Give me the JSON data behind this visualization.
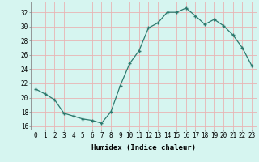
{
  "x": [
    0,
    1,
    2,
    3,
    4,
    5,
    6,
    7,
    8,
    9,
    10,
    11,
    12,
    13,
    14,
    15,
    16,
    17,
    18,
    19,
    20,
    21,
    22,
    23
  ],
  "y": [
    21.2,
    20.5,
    19.7,
    17.8,
    17.4,
    17.0,
    16.8,
    16.4,
    18.0,
    21.7,
    24.8,
    26.6,
    29.8,
    30.5,
    32.0,
    32.0,
    32.6,
    31.5,
    30.3,
    31.0,
    30.1,
    28.8,
    27.0,
    24.5
  ],
  "xlabel": "Humidex (Indice chaleur)",
  "xlim": [
    -0.5,
    23.5
  ],
  "ylim": [
    15.5,
    33.5
  ],
  "yticks": [
    16,
    18,
    20,
    22,
    24,
    26,
    28,
    30,
    32
  ],
  "xticks": [
    0,
    1,
    2,
    3,
    4,
    5,
    6,
    7,
    8,
    9,
    10,
    11,
    12,
    13,
    14,
    15,
    16,
    17,
    18,
    19,
    20,
    21,
    22,
    23
  ],
  "line_color": "#2d7a6e",
  "marker_color": "#2d7a6e",
  "bg_color": "#d6f5f0",
  "grid_color": "#e8b4b4",
  "label_fontsize": 6.5,
  "tick_fontsize": 5.5
}
